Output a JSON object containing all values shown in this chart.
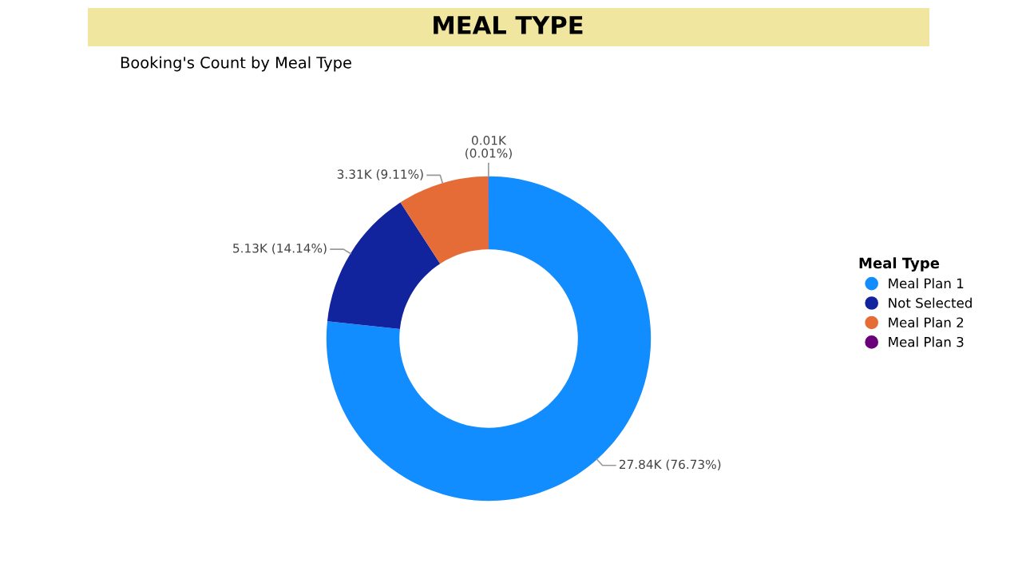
{
  "chart_data": {
    "type": "donut",
    "title": "MEAL TYPE",
    "subtitle": "Booking's Count by Meal Type",
    "categories": [
      "Meal Plan 1",
      "Not Selected",
      "Meal Plan 2",
      "Meal Plan 3"
    ],
    "values": [
      27840,
      5130,
      3310,
      10
    ],
    "value_labels": [
      "27.84K (76.73%)",
      "5.13K (14.14%)",
      "3.31K (9.11%)",
      "0.01K (0.01%)"
    ],
    "colors": [
      "#118dff",
      "#12239e",
      "#e66c37",
      "#6b007b"
    ],
    "legend_title": "Meal Type",
    "legend": "right"
  }
}
